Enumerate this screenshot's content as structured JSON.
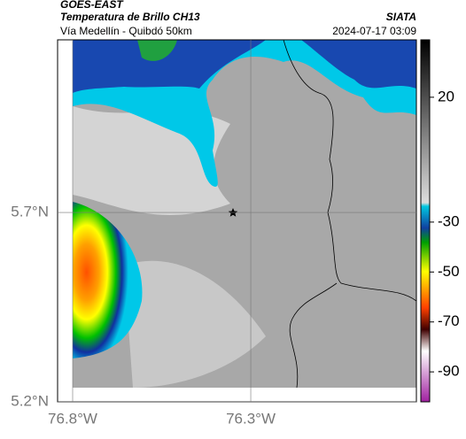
{
  "header": {
    "title": "GOES-EAST",
    "subtitle": "Temperatura de Brillo CH13",
    "location": "Vía Medellín - Quibdó 50km",
    "source": "SIATA",
    "datetime": "2024-07-17 03:09"
  },
  "map": {
    "xlim": [
      -76.8,
      -75.835
    ],
    "ylim": [
      5.2,
      6.156
    ],
    "lon_ticks": [
      {
        "value": -76.8,
        "label": "76.8°W"
      },
      {
        "value": -76.3,
        "label": "76.3°W"
      }
    ],
    "lat_ticks": [
      {
        "value": 5.7,
        "label": "5.7°N"
      },
      {
        "value": 5.2,
        "label": "5.2°N"
      }
    ]
  },
  "colorbar": {
    "clim": [
      -102,
      43
    ],
    "ticks": [
      20,
      -30,
      -50,
      -70,
      -90
    ]
  }
}
